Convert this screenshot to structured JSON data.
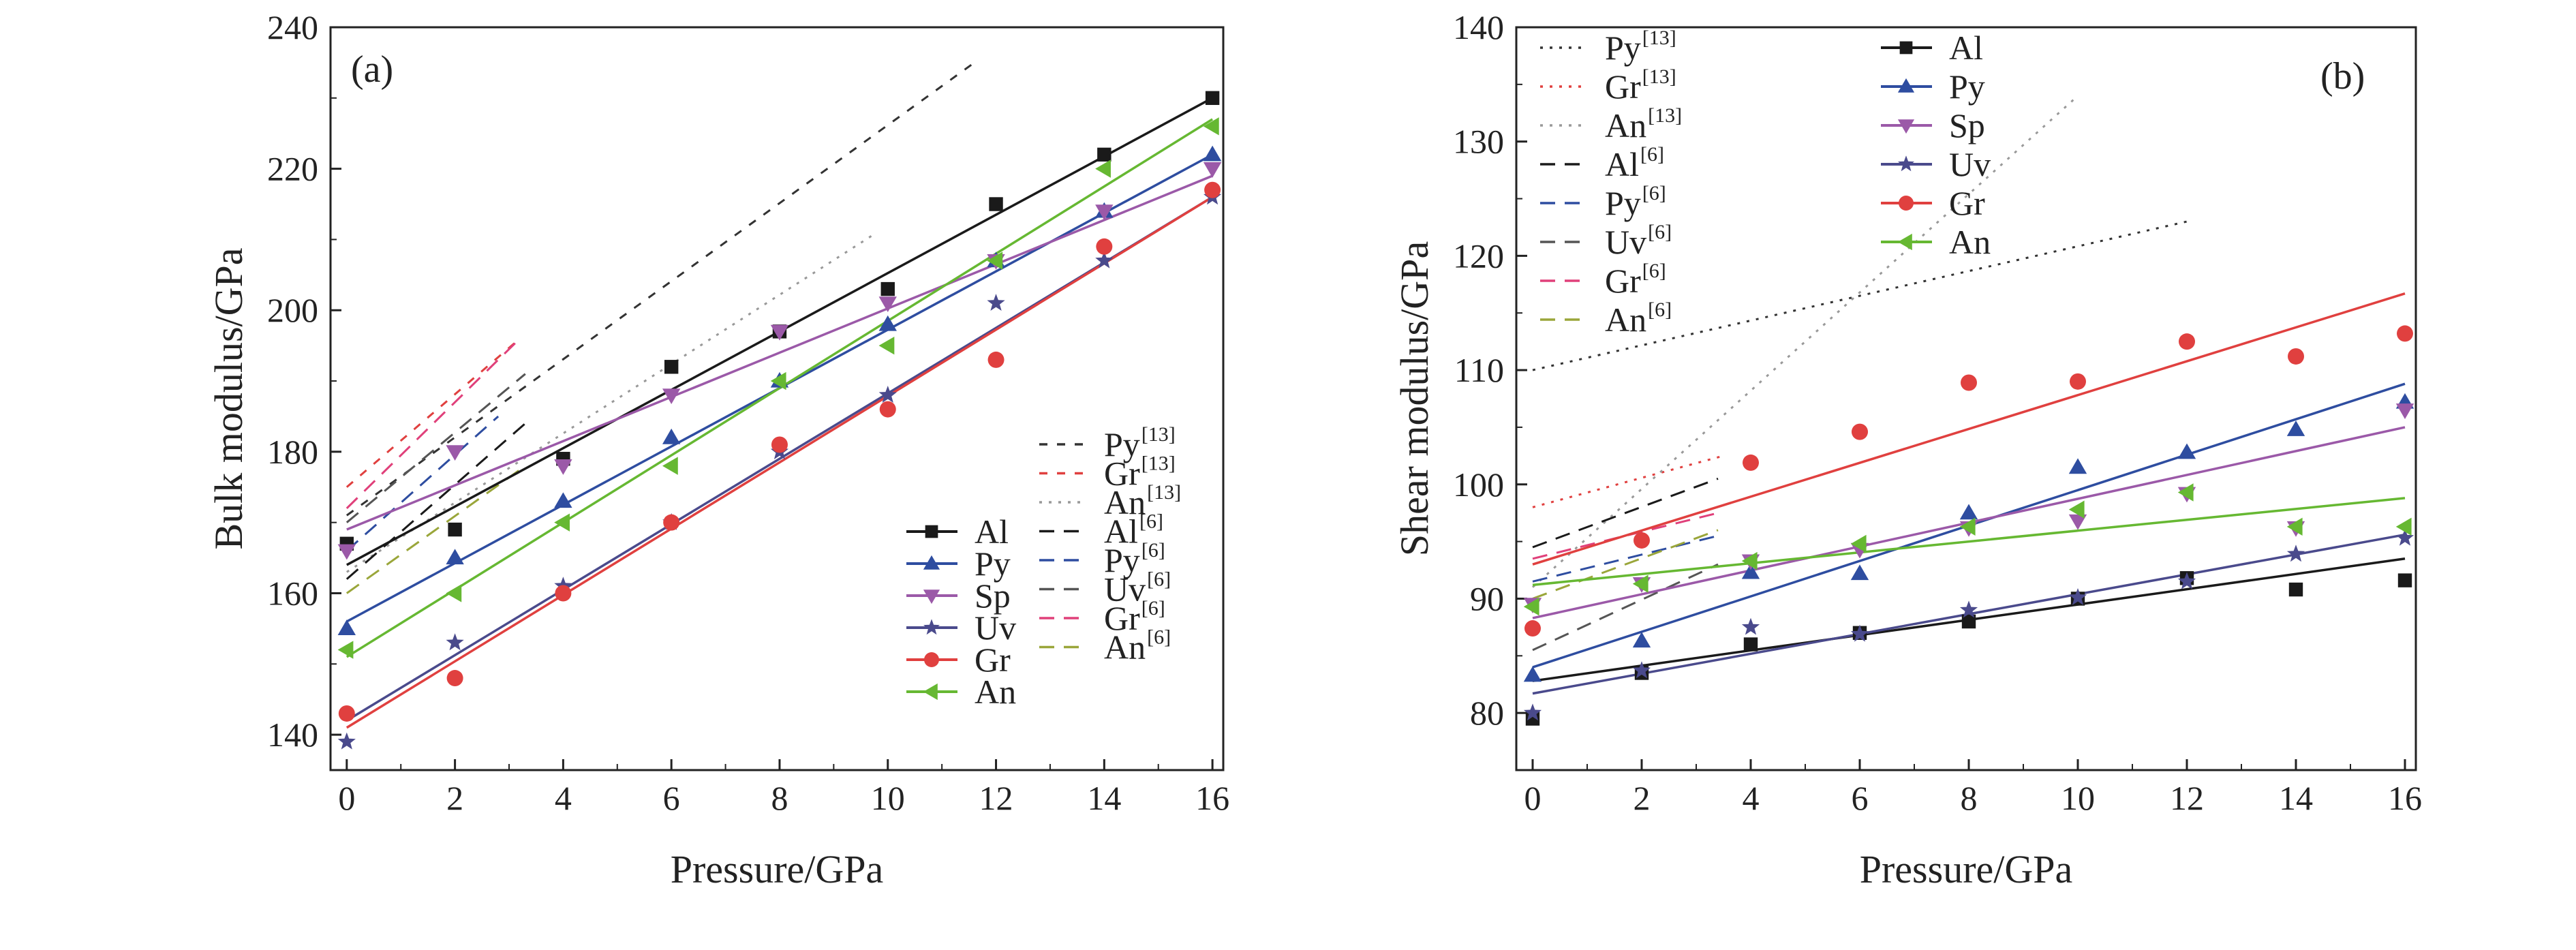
{
  "colors": {
    "Al": "#1a1a1a",
    "Py": "#2e4da0",
    "Sp": "#9b59a8",
    "Uv": "#4a4a8c",
    "Gr": "#e0403f",
    "An": "#66b832"
  },
  "markers": {
    "Al": "square",
    "Py": "triangle-up",
    "Sp": "triangle-down",
    "Uv": "star",
    "Gr": "circle",
    "An": "triangle-left"
  },
  "chart_data": [
    {
      "type": "scatter",
      "panel_label": "(a)",
      "xlabel": "Pressure/GPa",
      "ylabel": "Bulk modulus/GPa",
      "xlim": [
        -0.3,
        16.2
      ],
      "ylim": [
        135,
        240
      ],
      "xticks": [
        0,
        2,
        4,
        6,
        8,
        10,
        12,
        14,
        16
      ],
      "yticks": [
        140,
        160,
        180,
        200,
        220,
        240
      ],
      "grid": false,
      "legend_position": "bottom-right",
      "legend_layout": "two-columns",
      "series": [
        {
          "name": "Al",
          "x": [
            0,
            2,
            4,
            6,
            8,
            10,
            12,
            14,
            16
          ],
          "y": [
            167,
            169,
            179,
            192,
            197,
            203,
            215,
            222,
            230
          ],
          "fit": [
            [
              0,
              164
            ],
            [
              16,
              230
            ]
          ]
        },
        {
          "name": "Py",
          "x": [
            0,
            2,
            4,
            6,
            8,
            10,
            12,
            14,
            16
          ],
          "y": [
            155,
            165,
            173,
            182,
            190,
            198,
            207,
            214,
            222
          ],
          "fit": [
            [
              0,
              156
            ],
            [
              16,
              222
            ]
          ]
        },
        {
          "name": "Sp",
          "x": [
            0,
            2,
            4,
            6,
            8,
            10,
            12,
            14,
            16
          ],
          "y": [
            166,
            180,
            178,
            188,
            197,
            201,
            207,
            214,
            220
          ],
          "fit": [
            [
              0,
              169
            ],
            [
              16,
              219
            ]
          ]
        },
        {
          "name": "Uv",
          "x": [
            0,
            2,
            4,
            6,
            8,
            10,
            12,
            14,
            16
          ],
          "y": [
            139,
            153,
            161,
            170,
            180,
            188,
            201,
            207,
            216
          ],
          "fit": [
            [
              0,
              142
            ],
            [
              16,
              216
            ]
          ]
        },
        {
          "name": "Gr",
          "x": [
            0,
            2,
            4,
            6,
            8,
            10,
            12,
            14,
            16
          ],
          "y": [
            143,
            148,
            160,
            170,
            181,
            186,
            193,
            209,
            217
          ],
          "fit": [
            [
              0,
              141
            ],
            [
              16,
              216
            ]
          ]
        },
        {
          "name": "An",
          "x": [
            0,
            2,
            4,
            6,
            8,
            10,
            12,
            14,
            16
          ],
          "y": [
            152,
            160,
            170,
            178,
            190,
            195,
            207,
            220,
            226
          ],
          "fit": [
            [
              0,
              151
            ],
            [
              16,
              227
            ]
          ]
        }
      ],
      "reference_series": [
        {
          "name": "Py",
          "ref": "[13]",
          "style": "short-dash",
          "color": "#333333",
          "points": [
            [
              0,
              171
            ],
            [
              11.6,
              235
            ]
          ]
        },
        {
          "name": "Gr",
          "ref": "[13]",
          "style": "short-dash",
          "color": "#e0403f",
          "points": [
            [
              0,
              175
            ],
            [
              3.2,
              196
            ]
          ]
        },
        {
          "name": "An",
          "ref": "[13]",
          "style": "dot",
          "color": "#999999",
          "points": [
            [
              0,
              163
            ],
            [
              9.8,
              211
            ]
          ]
        },
        {
          "name": "Al",
          "ref": "[6]",
          "style": "dash",
          "color": "#1a1a1a",
          "points": [
            [
              0,
              162
            ],
            [
              3.3,
              184
            ]
          ]
        },
        {
          "name": "Py",
          "ref": "[6]",
          "style": "dash",
          "color": "#2e4da0",
          "points": [
            [
              0,
              166
            ],
            [
              2.8,
              185
            ]
          ]
        },
        {
          "name": "Uv",
          "ref": "[6]",
          "style": "dash",
          "color": "#555555",
          "points": [
            [
              0,
              170
            ],
            [
              3.3,
              191
            ]
          ]
        },
        {
          "name": "Gr",
          "ref": "[6]",
          "style": "dash",
          "color": "#e0407a",
          "points": [
            [
              0,
              172
            ],
            [
              3.2,
              196
            ]
          ]
        },
        {
          "name": "An",
          "ref": "[6]",
          "style": "dash",
          "color": "#9aa63a",
          "points": [
            [
              0,
              160
            ],
            [
              3.3,
              178
            ]
          ]
        }
      ]
    },
    {
      "type": "scatter",
      "panel_label": "(b)",
      "xlabel": "Pressure/GPa",
      "ylabel": "Shear modulus/GPa",
      "xlim": [
        -0.3,
        16.2
      ],
      "ylim": [
        75,
        140
      ],
      "xticks": [
        0,
        2,
        4,
        6,
        8,
        10,
        12,
        14,
        16
      ],
      "yticks": [
        80,
        90,
        100,
        110,
        120,
        130,
        140
      ],
      "grid": false,
      "legend_position": "top-left",
      "legend_layout": "two-columns",
      "series": [
        {
          "name": "Al",
          "x": [
            0,
            2,
            4,
            6,
            8,
            10,
            12,
            14,
            16
          ],
          "y": [
            79.5,
            83.5,
            86,
            87,
            88,
            90,
            91.8,
            90.8,
            91.6
          ],
          "fit": [
            [
              0,
              82.8
            ],
            [
              16,
              93.5
            ]
          ]
        },
        {
          "name": "Py",
          "x": [
            0,
            2,
            4,
            6,
            8,
            10,
            12,
            14,
            16
          ],
          "y": [
            83.3,
            86.3,
            92.3,
            92.2,
            97.5,
            101.5,
            102.8,
            104.8,
            107.2
          ],
          "fit": [
            [
              0,
              84
            ],
            [
              16,
              108.8
            ]
          ]
        },
        {
          "name": "Sp",
          "x": [
            0,
            2,
            4,
            6,
            8,
            10,
            12,
            14,
            16
          ],
          "y": [
            89.5,
            91.3,
            93.3,
            94.3,
            96.2,
            96.8,
            99.2,
            96.2,
            106.5
          ],
          "fit": [
            [
              0,
              88.3
            ],
            [
              16,
              105
            ]
          ]
        },
        {
          "name": "Uv",
          "x": [
            0,
            2,
            4,
            6,
            8,
            10,
            12,
            14,
            16
          ],
          "y": [
            80,
            83.7,
            87.5,
            86.9,
            89,
            90.1,
            91.5,
            93.9,
            95.3
          ],
          "fit": [
            [
              0,
              81.7
            ],
            [
              16,
              95.6
            ]
          ]
        },
        {
          "name": "Gr",
          "x": [
            0,
            2,
            4,
            6,
            8,
            10,
            12,
            14,
            16
          ],
          "y": [
            87.4,
            95.1,
            101.9,
            104.6,
            108.9,
            109,
            112.5,
            111.2,
            113.2
          ],
          "fit": [
            [
              0,
              93
            ],
            [
              16,
              116.7
            ]
          ]
        },
        {
          "name": "An",
          "x": [
            0,
            2,
            4,
            6,
            8,
            10,
            12,
            14,
            16
          ],
          "y": [
            89.3,
            91.3,
            93.3,
            94.8,
            96.3,
            97.8,
            99.3,
            96.3,
            96.3
          ],
          "fit": [
            [
              0,
              91.2
            ],
            [
              16,
              98.8
            ]
          ]
        }
      ],
      "reference_series": [
        {
          "name": "Py",
          "ref": "[13]",
          "style": "dot",
          "color": "#333333",
          "points": [
            [
              0,
              110
            ],
            [
              12,
              123
            ]
          ]
        },
        {
          "name": "Gr",
          "ref": "[13]",
          "style": "dot",
          "color": "#e0403f",
          "points": [
            [
              0,
              98
            ],
            [
              3.5,
              102.5
            ]
          ]
        },
        {
          "name": "An",
          "ref": "[13]",
          "style": "dot",
          "color": "#999999",
          "points": [
            [
              0,
              91
            ],
            [
              10,
              134
            ]
          ]
        },
        {
          "name": "Al",
          "ref": "[6]",
          "style": "dash",
          "color": "#1a1a1a",
          "points": [
            [
              0,
              94.5
            ],
            [
              3.4,
              100.5
            ]
          ]
        },
        {
          "name": "Py",
          "ref": "[6]",
          "style": "dash",
          "color": "#2e4da0",
          "points": [
            [
              0,
              91.5
            ],
            [
              3.4,
              95.5
            ]
          ]
        },
        {
          "name": "Uv",
          "ref": "[6]",
          "style": "dash",
          "color": "#555555",
          "points": [
            [
              0,
              85.5
            ],
            [
              3.4,
              93
            ]
          ]
        },
        {
          "name": "Gr",
          "ref": "[6]",
          "style": "dash",
          "color": "#e0407a",
          "points": [
            [
              0,
              93.5
            ],
            [
              3.4,
              97.5
            ]
          ]
        },
        {
          "name": "An",
          "ref": "[6]",
          "style": "dash",
          "color": "#9aa63a",
          "points": [
            [
              0,
              90
            ],
            [
              3.4,
              96
            ]
          ]
        }
      ]
    }
  ]
}
